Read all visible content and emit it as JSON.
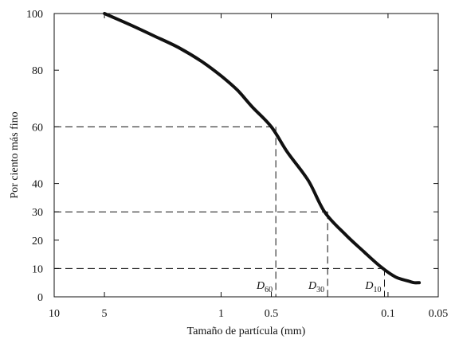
{
  "chart_data": {
    "type": "line",
    "xlabel": "Tamaño de partícula (mm)",
    "ylabel": "Por ciento más fino",
    "x_scale": "log",
    "x_reversed": true,
    "xlim": [
      10,
      0.05
    ],
    "ylim": [
      0,
      100
    ],
    "x_ticks": [
      {
        "value": 10,
        "label": "10"
      },
      {
        "value": 5,
        "label": "5"
      },
      {
        "value": 1,
        "label": "1"
      },
      {
        "value": 0.5,
        "label": "0.5"
      },
      {
        "value": 0.1,
        "label": "0.1"
      },
      {
        "value": 0.05,
        "label": "0.05"
      }
    ],
    "y_ticks": [
      0,
      10,
      20,
      30,
      40,
      60,
      80,
      100
    ],
    "series": [
      {
        "x": [
          5,
          3.5,
          2.5,
          1.8,
          1.3,
          1.0,
          0.8,
          0.65,
          0.5,
          0.4,
          0.3,
          0.24,
          0.18,
          0.14,
          0.11,
          0.09,
          0.075,
          0.07,
          0.065
        ],
        "y": [
          100,
          96,
          92,
          88,
          83,
          78,
          73,
          67,
          60,
          51,
          41,
          30,
          22,
          16,
          10.5,
          7,
          5.5,
          5,
          5
        ]
      }
    ],
    "reference_lines": [
      {
        "label": "D",
        "sub": "60",
        "x": 0.47,
        "y": 60
      },
      {
        "label": "D",
        "sub": "30",
        "x": 0.23,
        "y": 30
      },
      {
        "label": "D",
        "sub": "10",
        "x": 0.105,
        "y": 10
      }
    ]
  }
}
